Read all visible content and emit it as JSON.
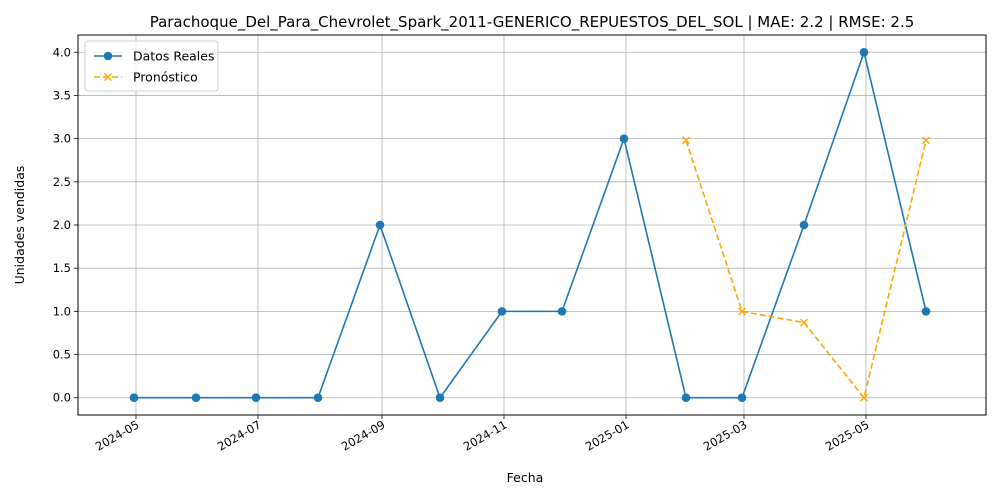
{
  "chart_data": {
    "type": "line",
    "title": "Parachoque_Del_Para_Chevrolet_Spark_2011-GENERICO_REPUESTOS_DEL_SOL | MAE: 2.2 | RMSE: 2.5",
    "xlabel": "Fecha",
    "ylabel": "Unidades vendidas",
    "ylim": [
      -0.2,
      4.2
    ],
    "xlim": [
      "2024-04-02",
      "2025-06-30"
    ],
    "grid": true,
    "legend_position": "top-left",
    "x_ticks": [
      "2024-05",
      "2024-07",
      "2024-09",
      "2024-11",
      "2025-01",
      "2025-03",
      "2025-05"
    ],
    "y_ticks": [
      "0.0",
      "0.5",
      "1.0",
      "1.5",
      "2.0",
      "2.5",
      "3.0",
      "3.5",
      "4.0"
    ],
    "series": [
      {
        "name": "Datos Reales",
        "color": "#1f77b4",
        "style": "solid",
        "marker": "circle",
        "x": [
          "2024-04-30",
          "2024-05-31",
          "2024-06-30",
          "2024-07-31",
          "2024-08-31",
          "2024-09-30",
          "2024-10-31",
          "2024-11-30",
          "2024-12-31",
          "2025-01-31",
          "2025-02-28",
          "2025-03-31",
          "2025-04-30",
          "2025-05-31"
        ],
        "values": [
          0,
          0,
          0,
          0,
          2,
          0,
          1,
          1,
          3,
          0,
          0,
          2,
          4,
          1
        ]
      },
      {
        "name": "Pronóstico",
        "color": "#ffa500",
        "style": "dashed",
        "marker": "x",
        "x": [
          "2025-01-31",
          "2025-02-28",
          "2025-03-31",
          "2025-04-30",
          "2025-05-31"
        ],
        "values": [
          2.98,
          1.0,
          0.87,
          0.0,
          2.98
        ]
      }
    ]
  }
}
